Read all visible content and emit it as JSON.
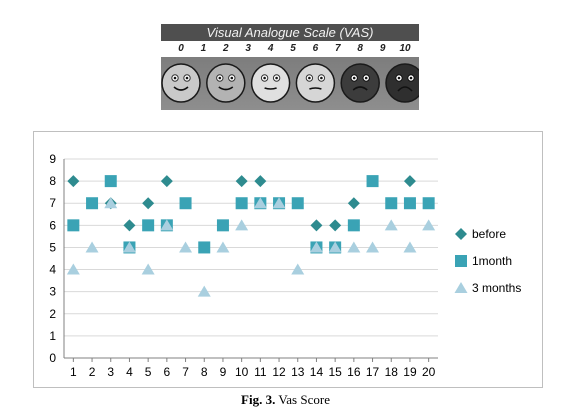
{
  "vas": {
    "title": "Visual Analogue Scale (VAS)",
    "scale_numbers": [
      "0",
      "1",
      "2",
      "3",
      "4",
      "5",
      "6",
      "7",
      "8",
      "9",
      "10"
    ]
  },
  "chart_data": {
    "type": "scatter",
    "title": "",
    "xlabel": "",
    "ylabel": "",
    "x": [
      1,
      2,
      3,
      4,
      5,
      6,
      7,
      8,
      9,
      10,
      11,
      12,
      13,
      14,
      15,
      16,
      17,
      18,
      19,
      20
    ],
    "xlim": [
      0.5,
      20.5
    ],
    "ylim": [
      0,
      9
    ],
    "yticks": [
      0,
      1,
      2,
      3,
      4,
      5,
      6,
      7,
      8,
      9
    ],
    "grid": "horizontal",
    "legend_position": "right",
    "series": [
      {
        "name": "before",
        "marker": "diamond",
        "color": "#2e8b8f",
        "points": [
          [
            1,
            8
          ],
          [
            3,
            7
          ],
          [
            4,
            6
          ],
          [
            5,
            7
          ],
          [
            6,
            8
          ],
          [
            10,
            8
          ],
          [
            11,
            8
          ],
          [
            14,
            6
          ],
          [
            15,
            6
          ],
          [
            16,
            7
          ],
          [
            19,
            8
          ]
        ]
      },
      {
        "name": "1month",
        "marker": "square",
        "color": "#3aa3b5",
        "points": [
          [
            1,
            6
          ],
          [
            2,
            7
          ],
          [
            3,
            8
          ],
          [
            4,
            5
          ],
          [
            5,
            6
          ],
          [
            6,
            6
          ],
          [
            7,
            7
          ],
          [
            8,
            5
          ],
          [
            9,
            6
          ],
          [
            10,
            7
          ],
          [
            11,
            7
          ],
          [
            12,
            7
          ],
          [
            13,
            7
          ],
          [
            14,
            5
          ],
          [
            15,
            5
          ],
          [
            16,
            6
          ],
          [
            17,
            8
          ],
          [
            18,
            7
          ],
          [
            19,
            7
          ],
          [
            20,
            7
          ]
        ]
      },
      {
        "name": "3 months",
        "marker": "triangle",
        "color": "#a9cfdf",
        "points": [
          [
            1,
            4
          ],
          [
            2,
            5
          ],
          [
            3,
            7
          ],
          [
            4,
            5
          ],
          [
            5,
            4
          ],
          [
            6,
            6
          ],
          [
            7,
            5
          ],
          [
            8,
            3
          ],
          [
            9,
            5
          ],
          [
            10,
            6
          ],
          [
            11,
            7
          ],
          [
            12,
            7
          ],
          [
            13,
            4
          ],
          [
            14,
            5
          ],
          [
            15,
            5
          ],
          [
            16,
            5
          ],
          [
            17,
            5
          ],
          [
            18,
            6
          ],
          [
            19,
            5
          ],
          [
            20,
            6
          ]
        ]
      }
    ]
  },
  "caption": {
    "fig_label": "Fig. 3.",
    "text": " Vas Score"
  }
}
